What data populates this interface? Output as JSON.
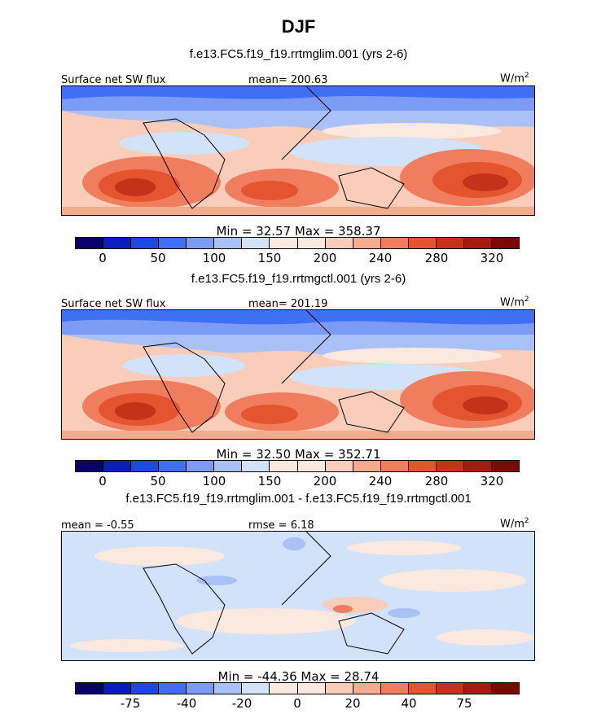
{
  "title": "DJF",
  "colors": {
    "levels": [
      "#08026b",
      "#0a1ec0",
      "#1c49e6",
      "#3f6ff2",
      "#7c9bf4",
      "#a9c1f6",
      "#d2e2f8",
      "#fbe8df",
      "#f9cdb9",
      "#f6ab8e",
      "#f07d5e",
      "#e3542f",
      "#c6311a",
      "#a51b10",
      "#7a0a05"
    ]
  },
  "panels": [
    {
      "case_title": "f.e13.FC5.f19_f19.rrtmglim.001 (yrs 2-6)",
      "left_label": "Surface net SW flux",
      "center_label": "mean= 200.63",
      "units": "W/m",
      "units_sup": "2",
      "min_max": "Min =   32.57  Max =  358.37",
      "ticks": [
        "0",
        "50",
        "100",
        "150",
        "200",
        "240",
        "280",
        "320"
      ]
    },
    {
      "case_title": "f.e13.FC5.f19_f19.rrtmgctl.001 (yrs 2-6)",
      "left_label": "Surface net SW flux",
      "center_label": "mean= 201.19",
      "units": "W/m",
      "units_sup": "2",
      "min_max": "Min =   32.50  Max =  352.71",
      "ticks": [
        "0",
        "50",
        "100",
        "150",
        "200",
        "240",
        "280",
        "320"
      ]
    },
    {
      "case_title": "f.e13.FC5.f19_f19.rrtmglim.001 - f.e13.FC5.f19_f19.rrtmgctl.001",
      "left_label": "mean =  -0.55",
      "center_label": "rmse =   6.18",
      "units": "W/m",
      "units_sup": "2",
      "min_max": "Min = -44.36  Max =   28.74",
      "ticks": [
        "-75",
        "-40",
        "-20",
        "0",
        "20",
        "40",
        "75"
      ]
    }
  ]
}
